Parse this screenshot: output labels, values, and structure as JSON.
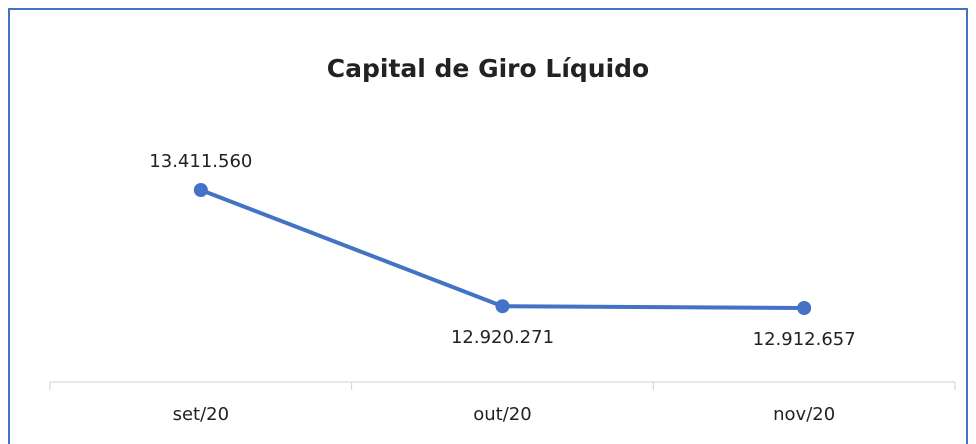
{
  "chart_data": {
    "type": "line",
    "title": "Capital de Giro Líquido",
    "categories": [
      "set/20",
      "out/20",
      "nov/20"
    ],
    "series": [
      {
        "name": "Capital de Giro Líquido",
        "color": "#4472c4",
        "values": [
          13411560,
          12920271,
          12912657
        ],
        "value_labels": [
          "13.411.560",
          "12.920.271",
          "12.912.657"
        ]
      }
    ]
  }
}
